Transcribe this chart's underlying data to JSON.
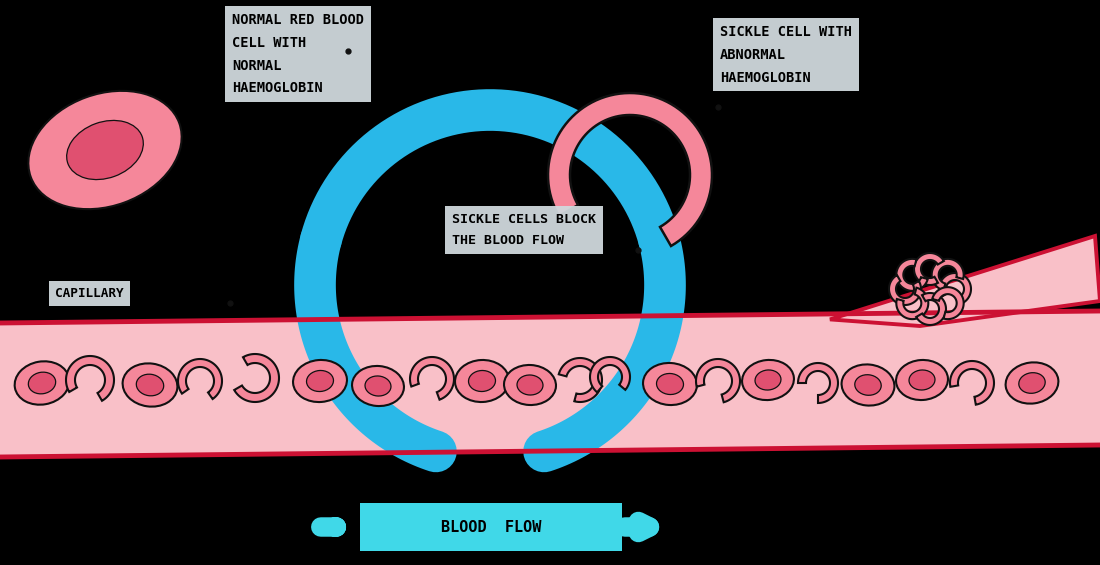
{
  "bg_color": "#000000",
  "rbc_outer_color": "#f5879a",
  "rbc_inner_color": "#e05070",
  "sickle_color": "#f5879a",
  "arrow_color": "#29b8e8",
  "vessel_fill": "#f9c0c8",
  "vessel_border": "#cc1133",
  "label_bg": "#d0d8dd",
  "label_text_color": "#000000",
  "blood_flow_bg": "#40d8e8",
  "text_normal_rbc": "NORMAL RED BLOOD\nCELL WITH\nNORMAL\nHAEMOGLOBIN",
  "text_sickle": "SICKLE CELL WITH\nABNORMAL\nHAEMOGLOBIN",
  "text_block": "SICKLE CELLS BLOCK\nTHE BLOOD FLOW",
  "text_capillary": "CAPILLARY",
  "text_blood_flow": "BLOOD  FLOW"
}
